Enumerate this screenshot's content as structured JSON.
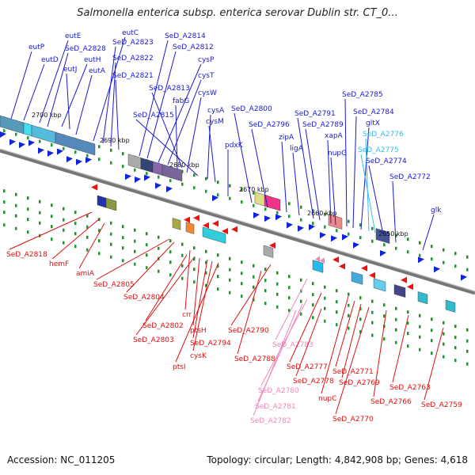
{
  "title": "Salmonella enterica subsp. enterica serovar Dublin str. CT_0...",
  "footer": {
    "accession": "Accession: NC_011205",
    "stats": "Topology: circular; Length: 4,842,908 bp; Genes: 4,618"
  },
  "colors": {
    "forward_label": "#1a1acc",
    "reverse_label": "#dd1111",
    "cyan_label": "#33bbee",
    "pink_label": "#ee88bb",
    "backbone": "#777777"
  },
  "ticks": [
    "2700 kbp",
    "2690 kbp",
    "2680 kbp",
    "2670 kbp",
    "2660 kbp",
    "2650 kbp"
  ],
  "forward_labels": [
    "eutP",
    "eutD",
    "eutE",
    "SeD_A2828",
    "eutH",
    "eutJ",
    "eutA",
    "eutC",
    "SeD_A2823",
    "SeD_A2822",
    "SeD_A2821",
    "SeD_A2814",
    "SeD_A2812",
    "cysP",
    "cysT",
    "SeD_A2813",
    "fabG",
    "cysW",
    "SeD_A2815",
    "cysA",
    "cysM",
    "pdxK",
    "SeD_A2800",
    "SeD_A2796",
    "zipA",
    "ligA",
    "SeD_A2791",
    "SeD_A2789",
    "xapA",
    "nupG",
    "SeD_A2785",
    "SeD_A2784",
    "gltX",
    "SeD_A2776",
    "SeD_A2775",
    "SeD_A2774",
    "SeD_A2772",
    "glk"
  ],
  "reverse_labels": [
    "SeD_A2818",
    "hemF",
    "amiA",
    "SeD_A2805",
    "SeD_A2804",
    "crr",
    "SeD_A2802",
    "SeD_A2803",
    "ptsH",
    "SeD_A2794",
    "cysK",
    "ptsI",
    "SeD_A2790",
    "SeD_A2788",
    "SeD_A2783",
    "SeD_A2777",
    "SeD_A2778",
    "SeD_A2780",
    "SeD_A2781",
    "SeD_A2782",
    "nupC",
    "SeD_A2771",
    "SeD_A2769",
    "SeD_A2770",
    "SeD_A2766",
    "SeD_A2763",
    "SeD_A2759"
  ]
}
